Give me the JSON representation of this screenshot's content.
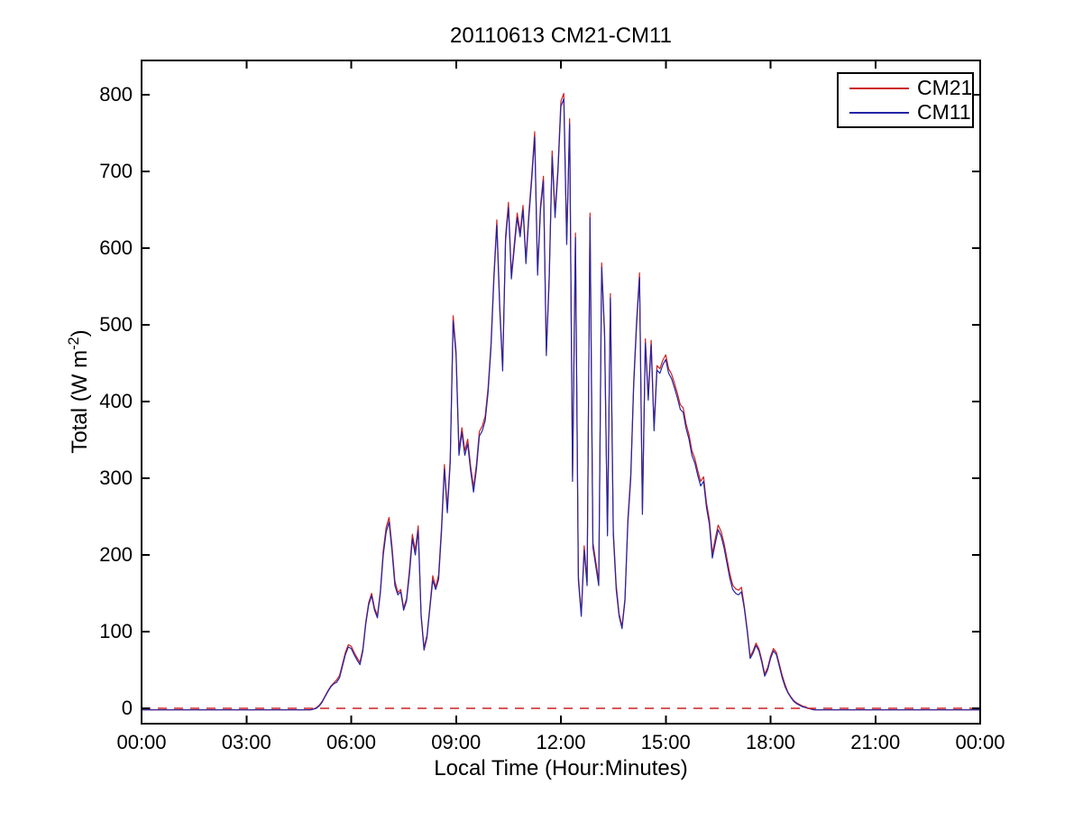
{
  "chart_data": {
    "type": "line",
    "title": "20110613 CM21-CM11",
    "xlabel": "Local Time (Hour:Minutes)",
    "ylabel": "Total (W m-2)",
    "ylabel_parts": {
      "pre": "Total (W m",
      "sup": "-2",
      "post": ")"
    },
    "grid": false,
    "background": "#ffffff",
    "axis_color": "#000000",
    "xlim_minutes": [
      0,
      1440
    ],
    "ylim": [
      -20,
      845
    ],
    "x_tick_minutes": [
      0,
      180,
      360,
      540,
      720,
      900,
      1080,
      1260,
      1440
    ],
    "x_tick_labels": [
      "00:00",
      "03:00",
      "06:00",
      "09:00",
      "12:00",
      "15:00",
      "18:00",
      "21:00",
      "00:00"
    ],
    "y_tick_values": [
      0,
      100,
      200,
      300,
      400,
      500,
      600,
      700,
      800
    ],
    "y_tick_labels": [
      "0",
      "100",
      "200",
      "300",
      "400",
      "500",
      "600",
      "700",
      "800"
    ],
    "legend": {
      "position": "top-right",
      "entries": [
        {
          "label": "CM21",
          "color": "#cc2222"
        },
        {
          "label": "CM11",
          "color": "#2525a5"
        }
      ]
    },
    "zero_reference_line": {
      "value": 0,
      "color": "#cc2222",
      "style": "dashed"
    },
    "x_minutes": [
      0,
      60,
      120,
      180,
      240,
      270,
      290,
      295,
      300,
      305,
      310,
      315,
      320,
      325,
      330,
      335,
      340,
      345,
      350,
      355,
      360,
      365,
      370,
      375,
      380,
      385,
      390,
      395,
      400,
      405,
      410,
      415,
      420,
      425,
      430,
      435,
      440,
      445,
      450,
      455,
      460,
      465,
      470,
      475,
      480,
      485,
      490,
      495,
      500,
      505,
      510,
      515,
      520,
      525,
      530,
      535,
      540,
      545,
      550,
      555,
      560,
      565,
      570,
      575,
      580,
      585,
      590,
      595,
      600,
      605,
      610,
      615,
      620,
      625,
      630,
      635,
      640,
      645,
      650,
      655,
      660,
      665,
      670,
      675,
      680,
      685,
      690,
      695,
      700,
      705,
      710,
      715,
      720,
      725,
      730,
      735,
      740,
      745,
      750,
      755,
      760,
      765,
      770,
      775,
      780,
      785,
      790,
      795,
      800,
      805,
      810,
      815,
      820,
      825,
      830,
      835,
      840,
      845,
      850,
      855,
      860,
      865,
      870,
      875,
      880,
      885,
      890,
      895,
      900,
      905,
      910,
      915,
      920,
      925,
      930,
      935,
      940,
      945,
      950,
      955,
      960,
      965,
      970,
      975,
      980,
      985,
      990,
      995,
      1000,
      1005,
      1010,
      1015,
      1020,
      1025,
      1030,
      1035,
      1040,
      1045,
      1050,
      1055,
      1060,
      1065,
      1070,
      1075,
      1080,
      1085,
      1090,
      1095,
      1100,
      1105,
      1110,
      1115,
      1120,
      1125,
      1130,
      1135,
      1140,
      1145,
      1150,
      1155,
      1160,
      1170,
      1200,
      1260,
      1320,
      1380,
      1440
    ],
    "series": [
      {
        "name": "CM21",
        "color": "#cc2222",
        "values": [
          -2,
          -2,
          -2,
          -2,
          -2,
          -2,
          -2,
          -1,
          1,
          4,
          9,
          16,
          23,
          29,
          33,
          37,
          43,
          58,
          73,
          83,
          81,
          73,
          66,
          60,
          78,
          113,
          138,
          150,
          131,
          121,
          153,
          206,
          236,
          249,
          211,
          166,
          151,
          155,
          131,
          143,
          181,
          227,
          206,
          238,
          123,
          79,
          95,
          133,
          173,
          158,
          174,
          236,
          318,
          261,
          326,
          512,
          466,
          336,
          366,
          336,
          351,
          316,
          288,
          318,
          361,
          368,
          381,
          418,
          476,
          566,
          637,
          526,
          446,
          616,
          660,
          566,
          606,
          646,
          621,
          656,
          586,
          646,
          696,
          752,
          571,
          656,
          694,
          466,
          566,
          727,
          646,
          706,
          792,
          802,
          611,
          769,
          302,
          620,
          173,
          123,
          212,
          166,
          646,
          216,
          191,
          166,
          581,
          492,
          231,
          541,
          232,
          161,
          123,
          107,
          143,
          247,
          306,
          426,
          506,
          568,
          259,
          482,
          408,
          480,
          368,
          447,
          443,
          454,
          461,
          443,
          436,
          424,
          411,
          396,
          392,
          371,
          357,
          336,
          326,
          310,
          296,
          302,
          268,
          246,
          202,
          221,
          239,
          231,
          216,
          196,
          176,
          161,
          156,
          154,
          158,
          133,
          103,
          68,
          75,
          85,
          78,
          63,
          45,
          53,
          68,
          78,
          73,
          58,
          43,
          31,
          21,
          15,
          10,
          7,
          5,
          3,
          2,
          0,
          -1,
          -2,
          -2,
          -2,
          -2,
          -2,
          -2,
          -2,
          -2
        ]
      },
      {
        "name": "CM11",
        "color": "#2525a5",
        "values": [
          -2,
          -2,
          -2,
          -2,
          -2,
          -2,
          -2,
          -1,
          0,
          3,
          8,
          15,
          22,
          28,
          32,
          34,
          40,
          55,
          70,
          80,
          78,
          70,
          63,
          57,
          75,
          110,
          135,
          147,
          128,
          118,
          150,
          200,
          230,
          243,
          205,
          160,
          148,
          152,
          128,
          140,
          175,
          221,
          200,
          232,
          120,
          76,
          92,
          130,
          167,
          155,
          168,
          230,
          312,
          255,
          320,
          505,
          460,
          330,
          360,
          330,
          345,
          310,
          282,
          312,
          355,
          362,
          375,
          412,
          470,
          560,
          630,
          520,
          440,
          610,
          653,
          560,
          600,
          640,
          615,
          650,
          580,
          640,
          690,
          745,
          565,
          650,
          688,
          460,
          560,
          720,
          640,
          700,
          785,
          795,
          605,
          762,
          296,
          614,
          167,
          120,
          206,
          160,
          640,
          210,
          185,
          160,
          575,
          486,
          225,
          535,
          226,
          155,
          120,
          104,
          140,
          241,
          300,
          420,
          500,
          562,
          253,
          476,
          402,
          474,
          362,
          441,
          437,
          448,
          455,
          437,
          430,
          418,
          405,
          390,
          386,
          365,
          351,
          330,
          320,
          304,
          290,
          296,
          262,
          240,
          196,
          215,
          233,
          225,
          210,
          190,
          170,
          155,
          150,
          148,
          152,
          130,
          100,
          65,
          72,
          82,
          75,
          60,
          42,
          50,
          65,
          75,
          70,
          55,
          40,
          28,
          20,
          14,
          9,
          6,
          4,
          2,
          1,
          0,
          -1,
          -2,
          -2,
          -2,
          -2,
          -2,
          -2,
          -2,
          -2
        ]
      }
    ]
  }
}
